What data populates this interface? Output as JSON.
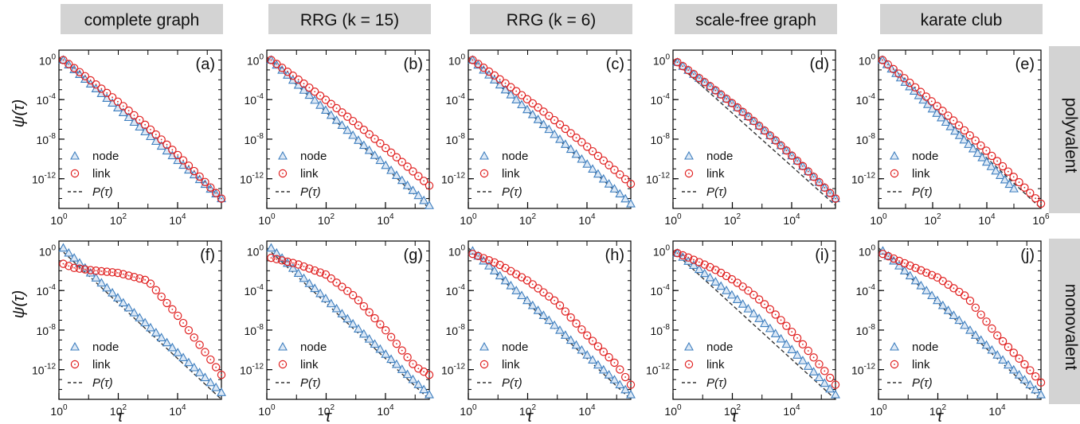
{
  "figure": {
    "column_headers": [
      "complete graph",
      "RRG (k = 15)",
      "RRG (k = 6)",
      "scale-free graph",
      "karate club"
    ],
    "row_labels": [
      "polyvalent",
      "monovalent"
    ],
    "ylabel": "ψ(τ)",
    "xlabel": "τ",
    "legend": [
      "node",
      "link",
      "P(τ)"
    ],
    "colors": {
      "node": "#3f7fbf",
      "node_fill": "#dde9f6",
      "link": "#e02020",
      "reference": "#333333",
      "header_bg": "#d3d3d3"
    }
  },
  "chart_data": [
    {
      "type": "scatter",
      "panel": "(a)",
      "xscale": "log",
      "yscale": "log",
      "xlim": [
        1,
        300000
      ],
      "ylim": [
        1e-15,
        10
      ],
      "xticks": [
        1,
        100,
        10000
      ],
      "yticks": [
        1,
        0.0001,
        1e-08,
        1e-12
      ],
      "series": [
        {
          "name": "node",
          "x": [
            1.4,
            300000
          ],
          "y": [
            1.0,
            1e-14
          ]
        },
        {
          "name": "link",
          "x": [
            1.4,
            300000
          ],
          "y": [
            1.0,
            1e-14
          ],
          "bulge": 0.35
        },
        {
          "name": "P(τ)",
          "x": [
            1,
            300000
          ],
          "y": [
            2.0,
            1e-14
          ]
        }
      ]
    },
    {
      "type": "scatter",
      "panel": "(b)",
      "xscale": "log",
      "yscale": "log",
      "xlim": [
        1,
        300000
      ],
      "ylim": [
        1e-15,
        10
      ],
      "xticks": [
        1,
        100,
        10000
      ],
      "yticks": [
        1,
        0.0001,
        1e-08,
        1e-12
      ],
      "series": [
        {
          "name": "node",
          "x": [
            1.4,
            300000
          ],
          "y": [
            1.0,
            2e-15
          ]
        },
        {
          "name": "link",
          "x": [
            1.4,
            300000
          ],
          "y": [
            1.0,
            2e-13
          ],
          "bulge": 0.2
        },
        {
          "name": "P(τ)",
          "x": [
            1,
            300000
          ],
          "y": [
            2.0,
            1e-15
          ]
        }
      ]
    },
    {
      "type": "scatter",
      "panel": "(c)",
      "xscale": "log",
      "yscale": "log",
      "xlim": [
        1,
        300000
      ],
      "ylim": [
        1e-15,
        10
      ],
      "xticks": [
        1,
        100,
        10000
      ],
      "yticks": [
        1,
        0.0001,
        1e-08,
        1e-12
      ],
      "series": [
        {
          "name": "node",
          "x": [
            1.4,
            300000
          ],
          "y": [
            1.0,
            3e-15
          ]
        },
        {
          "name": "link",
          "x": [
            1.4,
            300000
          ],
          "y": [
            1.0,
            3e-13
          ],
          "bulge": 0.2
        },
        {
          "name": "P(τ)",
          "x": [
            1,
            300000
          ],
          "y": [
            2.0,
            2e-15
          ]
        }
      ]
    },
    {
      "type": "scatter",
      "panel": "(d)",
      "xscale": "log",
      "yscale": "log",
      "xlim": [
        1,
        300000
      ],
      "ylim": [
        1e-15,
        10
      ],
      "xticks": [
        1,
        100,
        10000
      ],
      "yticks": [
        1,
        0.0001,
        1e-08,
        1e-12
      ],
      "series": [
        {
          "name": "node",
          "x": [
            1.4,
            300000
          ],
          "y": [
            0.6,
            1e-14
          ],
          "bulge": 0.35
        },
        {
          "name": "link",
          "x": [
            1.4,
            300000
          ],
          "y": [
            0.6,
            1e-14
          ],
          "bulge": 0.35
        },
        {
          "name": "P(τ)",
          "x": [
            1,
            300000
          ],
          "y": [
            1.0,
            2e-15
          ]
        }
      ]
    },
    {
      "type": "scatter",
      "panel": "(e)",
      "xscale": "log",
      "yscale": "log",
      "xlim": [
        1,
        1000000
      ],
      "ylim": [
        1e-15,
        10
      ],
      "xticks": [
        1,
        100,
        10000,
        1000000
      ],
      "yticks": [
        1,
        0.0001,
        1e-08,
        1e-12
      ],
      "series": [
        {
          "name": "node",
          "x": [
            1.4,
            100000
          ],
          "y": [
            1.0,
            1e-13
          ]
        },
        {
          "name": "link",
          "x": [
            1.4,
            1000000
          ],
          "y": [
            1.0,
            3e-15
          ],
          "bulge": 0.2
        },
        {
          "name": "P(τ)",
          "x": [
            1,
            1000000
          ],
          "y": [
            2.0,
            1e-15
          ]
        }
      ]
    },
    {
      "type": "scatter",
      "panel": "(f)",
      "xscale": "log",
      "yscale": "log",
      "xlim": [
        1,
        300000
      ],
      "ylim": [
        1e-15,
        10
      ],
      "xticks": [
        1,
        100,
        10000
      ],
      "yticks": [
        1,
        0.0001,
        1e-08,
        1e-12
      ],
      "series": [
        {
          "name": "node",
          "x": [
            1.4,
            300000
          ],
          "y": [
            2.0,
            5e-15
          ]
        },
        {
          "name": "link",
          "points": [
            [
              1.4,
              0.05
            ],
            [
              3,
              0.02
            ],
            [
              10,
              0.012
            ],
            [
              100,
              0.006
            ],
            [
              1000,
              0.001
            ],
            [
              3000,
              2e-05
            ],
            [
              10000,
              3e-07
            ],
            [
              100000,
              3e-11
            ],
            [
              300000,
              3e-13
            ]
          ]
        },
        {
          "name": "P(τ)",
          "x": [
            1,
            300000
          ],
          "y": [
            2.0,
            1e-15
          ]
        }
      ]
    },
    {
      "type": "scatter",
      "panel": "(g)",
      "xscale": "log",
      "yscale": "log",
      "xlim": [
        1,
        300000
      ],
      "ylim": [
        1e-15,
        10
      ],
      "xticks": [
        1,
        100,
        10000
      ],
      "yticks": [
        1,
        0.0001,
        1e-08,
        1e-12
      ],
      "series": [
        {
          "name": "node",
          "x": [
            1.4,
            300000
          ],
          "y": [
            2.0,
            3e-15
          ]
        },
        {
          "name": "link",
          "points": [
            [
              1.4,
              0.2
            ],
            [
              10,
              0.05
            ],
            [
              100,
              0.004
            ],
            [
              1000,
              2e-05
            ],
            [
              10000,
              1e-08
            ],
            [
              100000,
              2e-12
            ],
            [
              300000,
              3e-13
            ]
          ]
        },
        {
          "name": "P(τ)",
          "x": [
            1,
            300000
          ],
          "y": [
            2.0,
            1e-15
          ]
        }
      ]
    },
    {
      "type": "scatter",
      "panel": "(h)",
      "xscale": "log",
      "yscale": "log",
      "xlim": [
        1,
        300000
      ],
      "ylim": [
        1e-15,
        10
      ],
      "xticks": [
        1,
        100,
        10000
      ],
      "yticks": [
        1,
        0.0001,
        1e-08,
        1e-12
      ],
      "series": [
        {
          "name": "node",
          "x": [
            1.4,
            300000
          ],
          "y": [
            1.0,
            3e-15
          ]
        },
        {
          "name": "link",
          "points": [
            [
              1.4,
              0.5
            ],
            [
              10,
              0.05
            ],
            [
              100,
              0.001
            ],
            [
              1000,
              6e-06
            ],
            [
              10000,
              3e-09
            ],
            [
              100000,
              3e-12
            ],
            [
              300000,
              3e-14
            ]
          ]
        },
        {
          "name": "P(τ)",
          "x": [
            1,
            300000
          ],
          "y": [
            2.0,
            1e-15
          ]
        }
      ]
    },
    {
      "type": "scatter",
      "panel": "(i)",
      "xscale": "log",
      "yscale": "log",
      "xlim": [
        1,
        300000
      ],
      "ylim": [
        1e-15,
        10
      ],
      "xticks": [
        1,
        100,
        10000
      ],
      "yticks": [
        1,
        0.0001,
        1e-08,
        1e-12
      ],
      "series": [
        {
          "name": "node",
          "x": [
            1.4,
            300000
          ],
          "y": [
            0.6,
            3e-15
          ],
          "bulge": 0.4
        },
        {
          "name": "link",
          "x": [
            1.4,
            300000
          ],
          "y": [
            0.6,
            3e-14
          ],
          "bulge": 1.1
        },
        {
          "name": "P(τ)",
          "x": [
            1,
            300000
          ],
          "y": [
            1.0,
            1e-15
          ]
        }
      ]
    },
    {
      "type": "scatter",
      "panel": "(j)",
      "xscale": "log",
      "yscale": "log",
      "xlim": [
        1,
        300000
      ],
      "ylim": [
        1e-15,
        10
      ],
      "xticks": [
        1,
        100,
        10000
      ],
      "yticks": [
        1,
        0.0001,
        1e-08,
        1e-12
      ],
      "series": [
        {
          "name": "node",
          "x": [
            1.4,
            300000
          ],
          "y": [
            1.0,
            3e-15
          ]
        },
        {
          "name": "link",
          "points": [
            [
              1.4,
              0.5
            ],
            [
              10,
              0.04
            ],
            [
              100,
              0.002
            ],
            [
              1000,
              2e-05
            ],
            [
              10000,
              3e-09
            ],
            [
              100000,
              2e-12
            ],
            [
              300000,
              5e-14
            ]
          ]
        },
        {
          "name": "P(τ)",
          "x": [
            1,
            300000
          ],
          "y": [
            2.0,
            1e-15
          ]
        }
      ]
    }
  ]
}
